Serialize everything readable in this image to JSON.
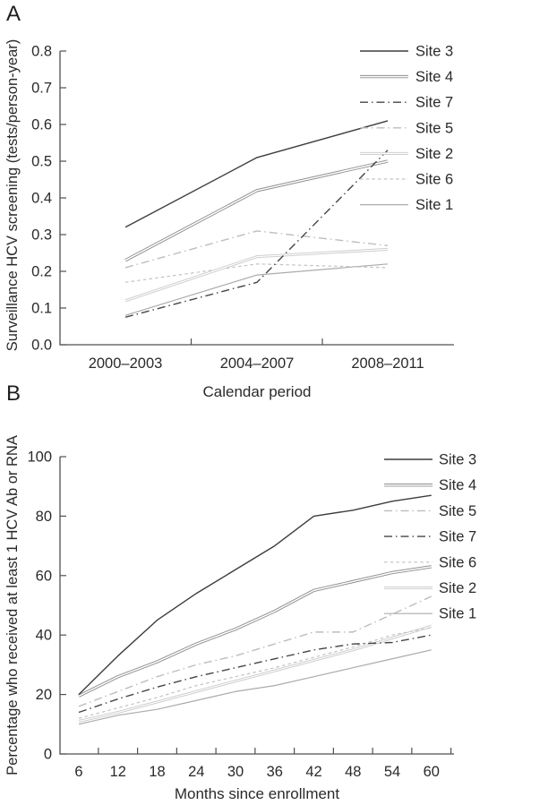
{
  "figure_title": "",
  "panels": {
    "a_label": "A",
    "b_label": "B"
  },
  "colors": {
    "axis": "#4f5052",
    "text": "#2a2a2a",
    "background": "#ffffff"
  },
  "line_styles": {
    "solid-dark": {
      "color": "#3d3d3d",
      "width": 1.4,
      "dash": "",
      "double": false
    },
    "double-gray": {
      "color": "#8e8e8e",
      "width": 3.4,
      "dash": "",
      "double": true,
      "core": "#ffffff",
      "core_width": 1.5
    },
    "dashdot-dark": {
      "color": "#454545",
      "width": 1.4,
      "dash": "9 4 1.5 4",
      "double": false
    },
    "dashdot-light": {
      "color": "#bdbdbd",
      "width": 1.4,
      "dash": "9 4 1.5 4",
      "double": false
    },
    "double-light": {
      "color": "#c9c9c9",
      "width": 3.0,
      "dash": "",
      "double": true,
      "core": "#ffffff",
      "core_width": 1.2
    },
    "dashed-light": {
      "color": "#c2c2c2",
      "width": 1.2,
      "dash": "3.5 3.2",
      "double": false
    },
    "solid-light": {
      "color": "#ababab",
      "width": 1.2,
      "dash": "",
      "double": false
    }
  },
  "chart_data": [
    {
      "id": "A",
      "panel_label": "A",
      "type": "line",
      "title": "",
      "xlabel": "Calendar period",
      "ylabel": "Surveillance HCV screening (tests/person-year)",
      "categories": [
        "2000–2003",
        "2004–2007",
        "2008–2011"
      ],
      "ylim": [
        0,
        0.8
      ],
      "ytick_labels": [
        "0.0",
        "0.1",
        "0.2",
        "0.3",
        "0.4",
        "0.5",
        "0.6",
        "0.7",
        "0.8"
      ],
      "grid": false,
      "legend_position": "top-right",
      "series": [
        {
          "name": "Site 3",
          "style": "solid-dark",
          "values": [
            0.32,
            0.51,
            0.61
          ]
        },
        {
          "name": "Site 4",
          "style": "double-gray",
          "values": [
            0.23,
            0.42,
            0.5
          ]
        },
        {
          "name": "Site 7",
          "style": "dashdot-dark",
          "values": [
            0.075,
            0.17,
            0.53
          ]
        },
        {
          "name": "Site 5",
          "style": "dashdot-light",
          "values": [
            0.21,
            0.31,
            0.27
          ]
        },
        {
          "name": "Site 2",
          "style": "double-light",
          "values": [
            0.12,
            0.24,
            0.26
          ]
        },
        {
          "name": "Site 6",
          "style": "dashed-light",
          "values": [
            0.17,
            0.22,
            0.21
          ]
        },
        {
          "name": "Site 1",
          "style": "solid-light",
          "values": [
            0.08,
            0.19,
            0.22
          ]
        }
      ]
    },
    {
      "id": "B",
      "panel_label": "B",
      "type": "line",
      "title": "",
      "xlabel": "Months since enrollment",
      "ylabel": "Percentage who received at least 1 HCV Ab or RNA",
      "x": [
        6,
        12,
        18,
        24,
        30,
        36,
        42,
        48,
        54,
        60
      ],
      "xtick_labels": [
        "6",
        "12",
        "18",
        "24",
        "30",
        "36",
        "42",
        "48",
        "54",
        "60"
      ],
      "ylim": [
        0,
        100
      ],
      "ytick_labels": [
        "0",
        "20",
        "40",
        "60",
        "80",
        "100"
      ],
      "grid": false,
      "legend_position": "top-right",
      "series": [
        {
          "name": "Site 3",
          "style": "solid-dark",
          "values": [
            20,
            33,
            45,
            54,
            62,
            70,
            80,
            82,
            85,
            87
          ]
        },
        {
          "name": "Site 4",
          "style": "double-gray",
          "values": [
            19.5,
            26,
            31,
            37,
            42,
            48,
            55,
            58,
            61,
            63
          ]
        },
        {
          "name": "Site 5",
          "style": "dashdot-light",
          "values": [
            16,
            21,
            26,
            30,
            33,
            37,
            41,
            41,
            47,
            53
          ]
        },
        {
          "name": "Site 7",
          "style": "dashdot-dark",
          "values": [
            14,
            18.5,
            22.5,
            26,
            29,
            32,
            35,
            37,
            37.5,
            40
          ]
        },
        {
          "name": "Site 6",
          "style": "dashed-light",
          "values": [
            12,
            15.5,
            19,
            23,
            26,
            29,
            32.5,
            36,
            40,
            42.5
          ]
        },
        {
          "name": "Site 2",
          "style": "double-light",
          "values": [
            11,
            14,
            17.5,
            21,
            24.5,
            28,
            31.5,
            35,
            39,
            43
          ]
        },
        {
          "name": "Site 1",
          "style": "solid-light",
          "values": [
            10,
            13,
            15,
            18,
            21,
            23,
            26,
            29,
            32,
            35
          ]
        }
      ]
    }
  ]
}
